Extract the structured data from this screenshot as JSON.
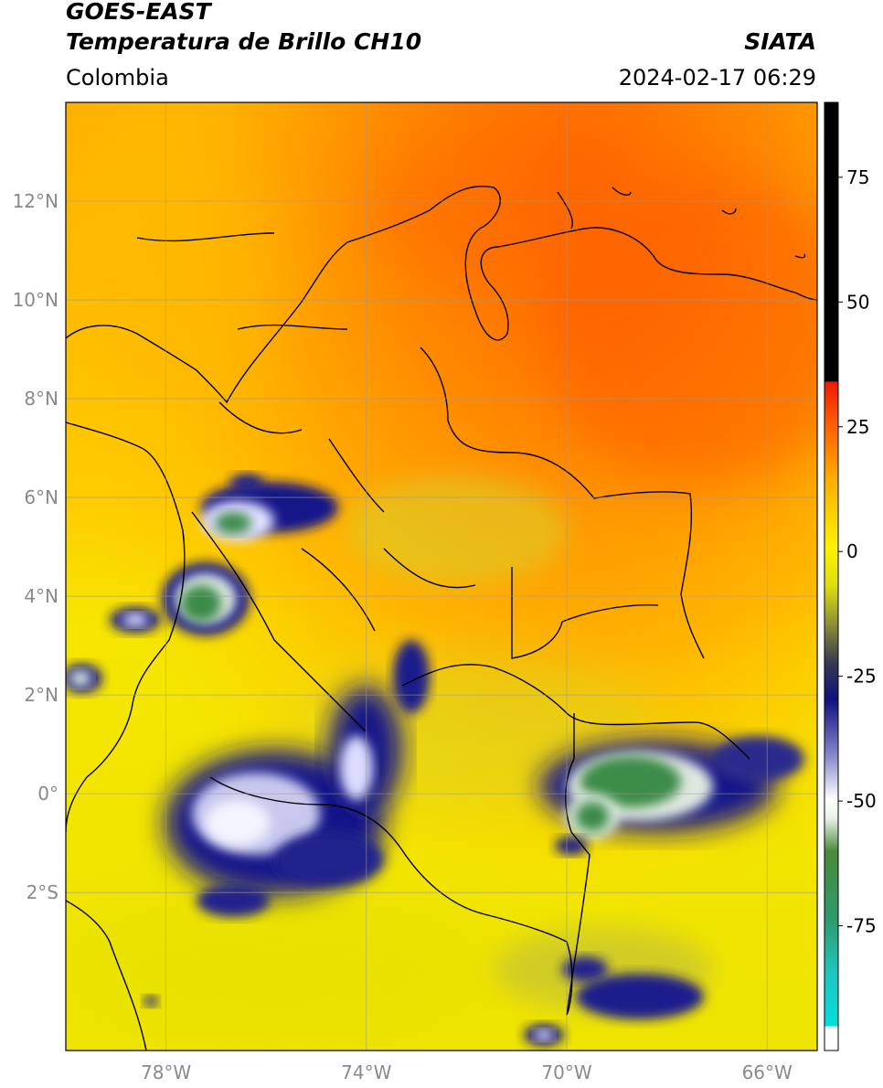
{
  "header": {
    "title_line1": "GOES-EAST",
    "title_line2": "Temperatura de Brillo CH10",
    "region": "Colombia",
    "brand": "SIATA",
    "datetime": "2024-02-17 06:29"
  },
  "map": {
    "lon_range": [
      -80,
      -65
    ],
    "lat_range": [
      -5.2,
      14
    ],
    "lon_ticks": [
      {
        "value": -78,
        "label": "78°W"
      },
      {
        "value": -74,
        "label": "74°W"
      },
      {
        "value": -70,
        "label": "70°W"
      },
      {
        "value": -66,
        "label": "66°W"
      }
    ],
    "lat_ticks": [
      {
        "value": 12,
        "label": "12°N"
      },
      {
        "value": 10,
        "label": "10°N"
      },
      {
        "value": 8,
        "label": "8°N"
      },
      {
        "value": 6,
        "label": "6°N"
      },
      {
        "value": 4,
        "label": "4°N"
      },
      {
        "value": 2,
        "label": "2°N"
      },
      {
        "value": 0,
        "label": "0°"
      },
      {
        "value": -2,
        "label": "2°S"
      }
    ],
    "grid": true
  },
  "colorbar": {
    "range": [
      -100,
      90
    ],
    "ticks": [
      {
        "value": 75,
        "label": "75"
      },
      {
        "value": 50,
        "label": "50"
      },
      {
        "value": 25,
        "label": "25"
      },
      {
        "value": 0,
        "label": "0"
      },
      {
        "value": -25,
        "label": "-25"
      },
      {
        "value": -50,
        "label": "-50"
      },
      {
        "value": -75,
        "label": "-75"
      }
    ]
  },
  "colors": {
    "cold_cloud_blue": "#1a1a8c",
    "cloud_white": "#f0f0f0",
    "cloud_green": "#3a8a4a",
    "warm_orange": "#ff6a00",
    "mid_yellow": "#f6e800"
  }
}
